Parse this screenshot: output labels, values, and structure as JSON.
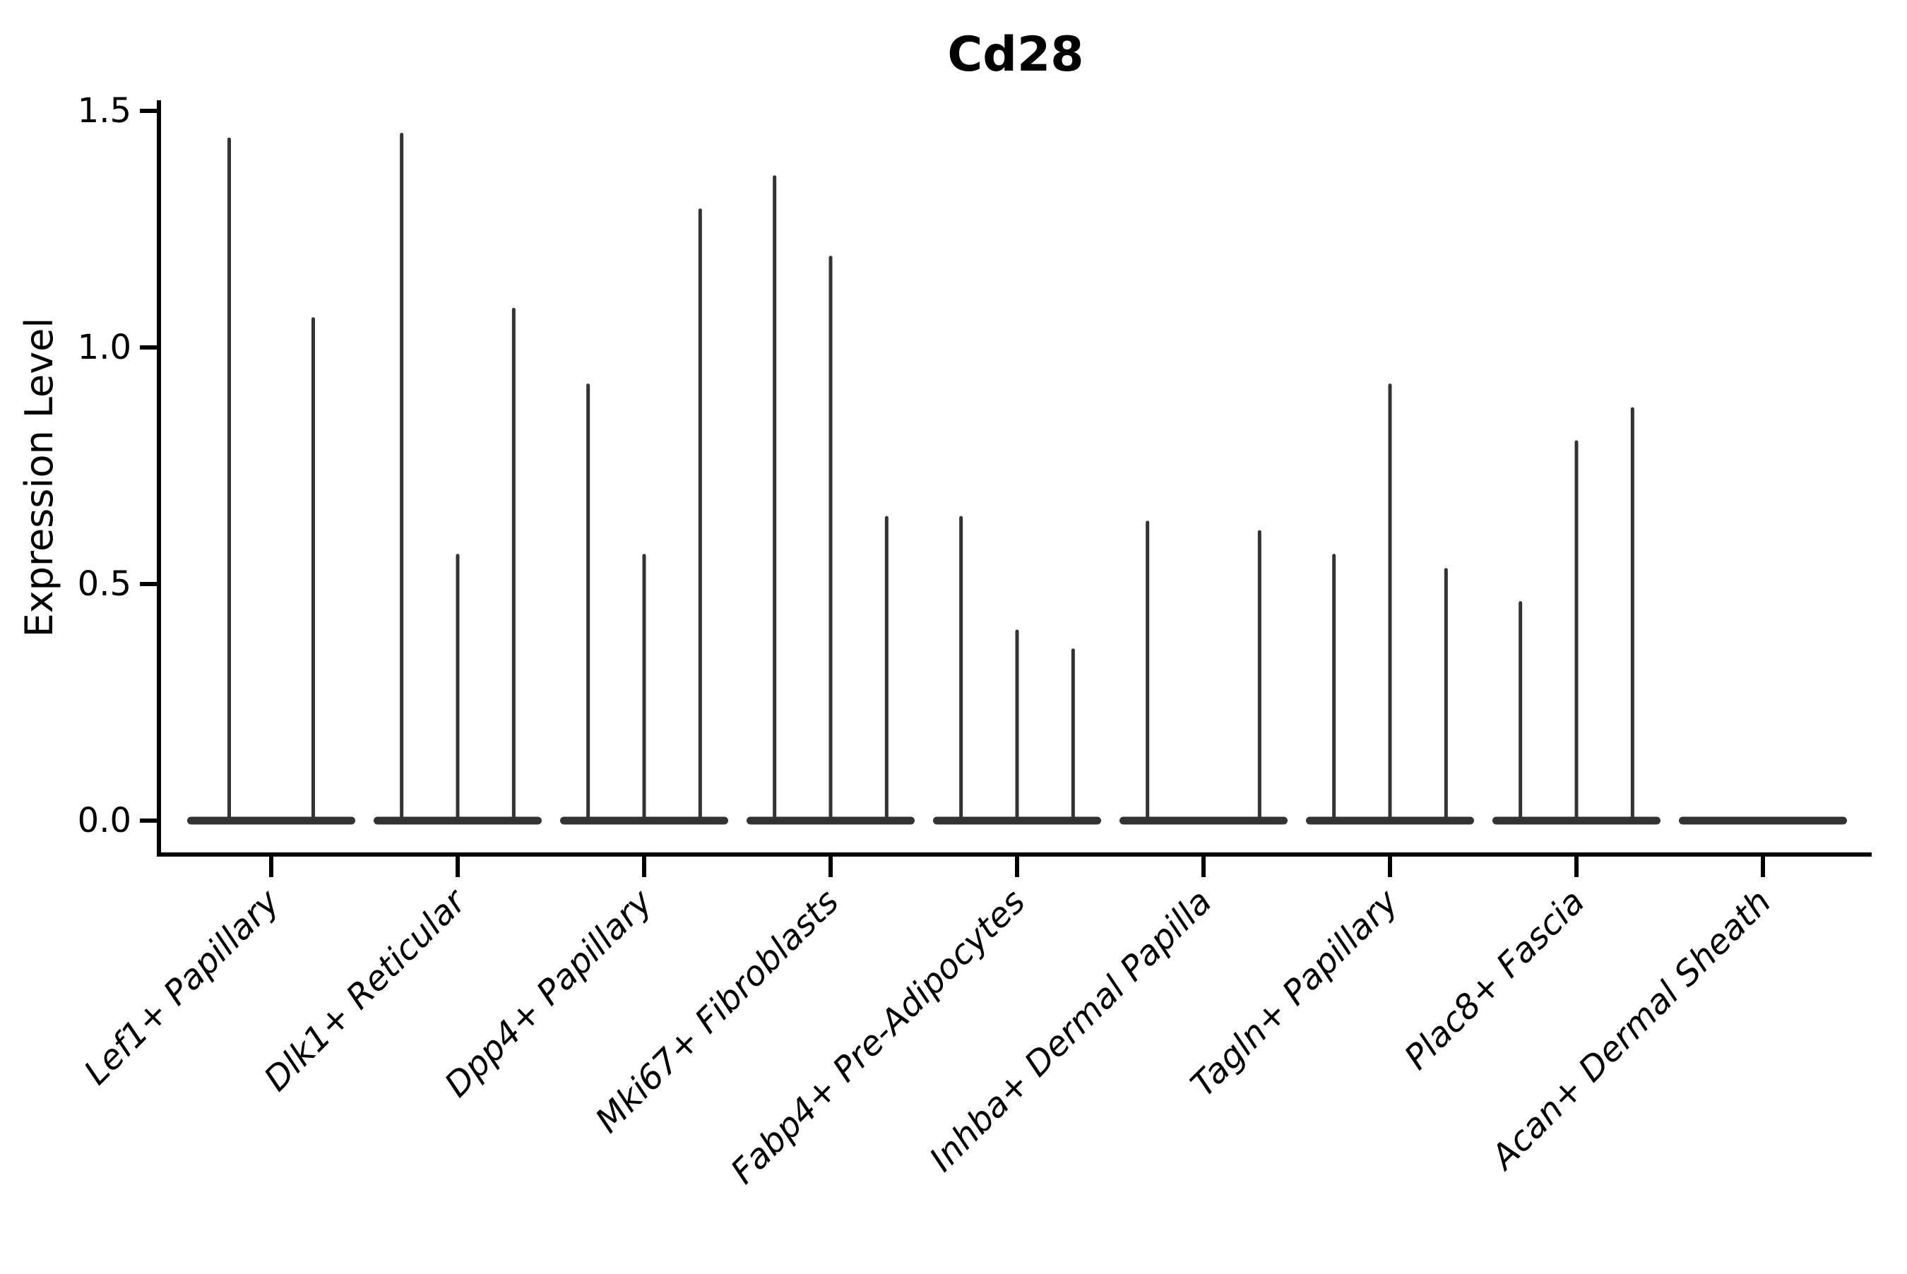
{
  "chart_data": {
    "type": "violin",
    "title": "Cd28",
    "xlabel": "",
    "ylabel": "Expression Level",
    "ylim": [
      0,
      1.5
    ],
    "yticks": [
      0.0,
      0.5,
      1.0,
      1.5
    ],
    "ytick_labels": [
      "0.0",
      "0.5",
      "1.0",
      "1.5"
    ],
    "grid": "off",
    "legend": "none",
    "categories": [
      "Lef1+ Papillary",
      "Dlk1+ Reticular",
      "Dpp4+ Papillary",
      "Mki67+ Fibroblasts",
      "Fabp4+ Pre-Adipocytes",
      "Inhba+ Dermal Papilla",
      "Tagln+ Papillary",
      "Plac8+ Fascia",
      "Acan+ Dermal Sheath"
    ],
    "groups": [
      {
        "label": "Lef1+ Papillary",
        "spike_max": [
          1.44,
          1.06
        ]
      },
      {
        "label": "Dlk1+ Reticular",
        "spike_max": [
          1.45,
          0.56,
          1.08
        ]
      },
      {
        "label": "Dpp4+ Papillary",
        "spike_max": [
          0.92,
          0.56,
          1.29
        ]
      },
      {
        "label": "Mki67+ Fibroblasts",
        "spike_max": [
          1.36,
          1.19,
          0.64
        ]
      },
      {
        "label": "Fabp4+ Pre-Adipocytes",
        "spike_max": [
          0.64,
          0.4,
          0.36
        ]
      },
      {
        "label": "Inhba+ Dermal Papilla",
        "spike_max": [
          0.63,
          0,
          0.61
        ]
      },
      {
        "label": "Tagln+ Papillary",
        "spike_max": [
          0.56,
          0.92,
          0.53
        ]
      },
      {
        "label": "Plac8+ Fascia",
        "spike_max": [
          0.46,
          0.8,
          0.87
        ]
      },
      {
        "label": "Acan+ Dermal Sheath",
        "spike_max": [
          0,
          0,
          0
        ]
      }
    ],
    "note": "Each cell-type group contains thin dodged violins (one per sample); nearly all density sits at 0 expression, with a thin spike rising to the listed maximum expression value. Zero entries mean a flat violin with no spike."
  },
  "colors": {
    "violin": "#333333",
    "axis": "#000000",
    "text": "#000000",
    "background": "#ffffff"
  }
}
